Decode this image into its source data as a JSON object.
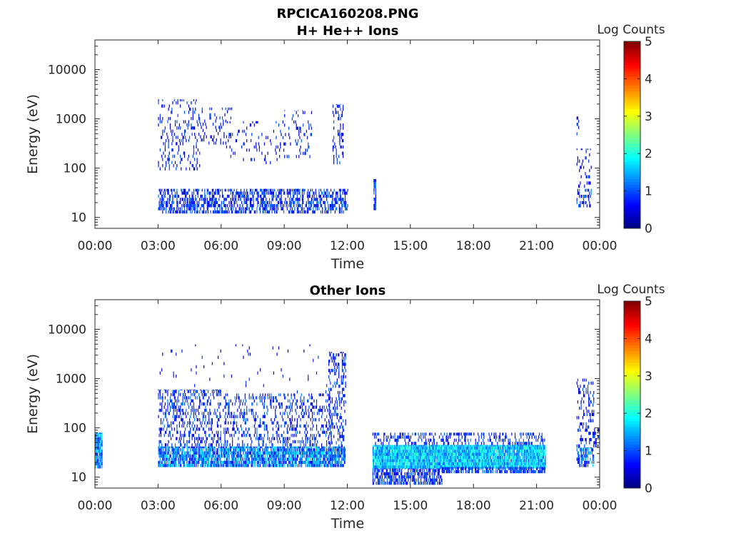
{
  "figure": {
    "title": "RPCICA160208.PNG"
  },
  "chart_data": [
    {
      "type": "heatmap",
      "title": "H+ He++ Ions",
      "xlabel": "Time",
      "ylabel": "Energy (eV)",
      "x_ticks": [
        "00:00",
        "03:00",
        "06:00",
        "09:00",
        "12:00",
        "15:00",
        "18:00",
        "21:00",
        "00:00"
      ],
      "x_range_hours": [
        0,
        24
      ],
      "y_scale": "log",
      "y_ticks": [
        "10",
        "100",
        "1000",
        "10000"
      ],
      "y_range": [
        6,
        40000
      ],
      "colorbar": {
        "label": "Log Counts",
        "ticks": [
          "0",
          "1",
          "2",
          "3",
          "4",
          "5"
        ],
        "range": [
          0,
          5
        ],
        "colormap": "jet"
      },
      "grid": false,
      "blobs": [
        {
          "t": [
            3.0,
            12.0
          ],
          "e": [
            12,
            38
          ],
          "v": [
            0.3,
            1.3
          ],
          "d": 0.5
        },
        {
          "t": [
            3.0,
            5.0
          ],
          "e": [
            90,
            2500
          ],
          "v": [
            0.3,
            1.1
          ],
          "d": 0.16
        },
        {
          "t": [
            5.0,
            6.5
          ],
          "e": [
            300,
            1700
          ],
          "v": [
            0.3,
            1.1
          ],
          "d": 0.12
        },
        {
          "t": [
            6.2,
            8.8
          ],
          "e": [
            120,
            900
          ],
          "v": [
            0.3,
            1.0
          ],
          "d": 0.06
        },
        {
          "t": [
            8.8,
            10.3
          ],
          "e": [
            160,
            1500
          ],
          "v": [
            0.3,
            1.1
          ],
          "d": 0.12
        },
        {
          "t": [
            11.3,
            11.8
          ],
          "e": [
            120,
            2000
          ],
          "v": [
            0.3,
            1.1
          ],
          "d": 0.25
        },
        {
          "t": [
            13.25,
            13.35
          ],
          "e": [
            14,
            60
          ],
          "v": [
            0.4,
            1.4
          ],
          "d": 0.8
        },
        {
          "t": [
            22.9,
            23.6
          ],
          "e": [
            16,
            38
          ],
          "v": [
            0.4,
            1.4
          ],
          "d": 0.4
        },
        {
          "t": [
            22.9,
            23.6
          ],
          "e": [
            40,
            250
          ],
          "v": [
            0.3,
            1.0
          ],
          "d": 0.15
        },
        {
          "t": [
            22.9,
            23.0
          ],
          "e": [
            400,
            1700
          ],
          "v": [
            0.3,
            1.0
          ],
          "d": 0.3
        }
      ]
    },
    {
      "type": "heatmap",
      "title": "Other Ions",
      "xlabel": "Time",
      "ylabel": "Energy (eV)",
      "x_ticks": [
        "00:00",
        "03:00",
        "06:00",
        "09:00",
        "12:00",
        "15:00",
        "18:00",
        "21:00",
        "00:00"
      ],
      "x_range_hours": [
        0,
        24
      ],
      "y_scale": "log",
      "y_ticks": [
        "10",
        "100",
        "1000",
        "10000"
      ],
      "y_range": [
        6,
        40000
      ],
      "colorbar": {
        "label": "Log Counts",
        "ticks": [
          "0",
          "1",
          "2",
          "3",
          "4",
          "5"
        ],
        "range": [
          0,
          5
        ],
        "colormap": "jet"
      },
      "grid": false,
      "blobs": [
        {
          "t": [
            0.0,
            0.35
          ],
          "e": [
            15,
            80
          ],
          "v": [
            0.6,
            2.0
          ],
          "d": 0.9
        },
        {
          "t": [
            3.0,
            11.9
          ],
          "e": [
            16,
            42
          ],
          "v": [
            0.5,
            1.9
          ],
          "d": 0.8
        },
        {
          "t": [
            3.0,
            6.0
          ],
          "e": [
            42,
            600
          ],
          "v": [
            0.3,
            1.3
          ],
          "d": 0.3
        },
        {
          "t": [
            6.0,
            11.2
          ],
          "e": [
            42,
            500
          ],
          "v": [
            0.3,
            1.3
          ],
          "d": 0.25
        },
        {
          "t": [
            3.0,
            11.5
          ],
          "e": [
            500,
            5000
          ],
          "v": [
            0.3,
            1.0
          ],
          "d": 0.02
        },
        {
          "t": [
            11.1,
            11.9
          ],
          "e": [
            40,
            3500
          ],
          "v": [
            0.3,
            1.2
          ],
          "d": 0.3
        },
        {
          "t": [
            13.2,
            21.4
          ],
          "e": [
            45,
            80
          ],
          "v": [
            0.3,
            1.2
          ],
          "d": 0.3
        },
        {
          "t": [
            13.2,
            21.4
          ],
          "e": [
            15,
            45
          ],
          "v": [
            1.0,
            2.2
          ],
          "d": 0.98
        },
        {
          "t": [
            13.2,
            16.5
          ],
          "e": [
            7,
            15
          ],
          "v": [
            0.4,
            1.2
          ],
          "d": 0.6
        },
        {
          "t": [
            16.5,
            21.4
          ],
          "e": [
            12,
            16
          ],
          "v": [
            0.5,
            1.3
          ],
          "d": 0.7
        },
        {
          "t": [
            22.9,
            23.7
          ],
          "e": [
            16,
            40
          ],
          "v": [
            0.5,
            1.8
          ],
          "d": 0.6
        },
        {
          "t": [
            22.9,
            23.7
          ],
          "e": [
            40,
            1000
          ],
          "v": [
            0.3,
            1.1
          ],
          "d": 0.25
        },
        {
          "t": [
            23.7,
            24.0
          ],
          "e": [
            40,
            100
          ],
          "v": [
            0.3,
            1.0
          ],
          "d": 0.4
        }
      ]
    }
  ]
}
